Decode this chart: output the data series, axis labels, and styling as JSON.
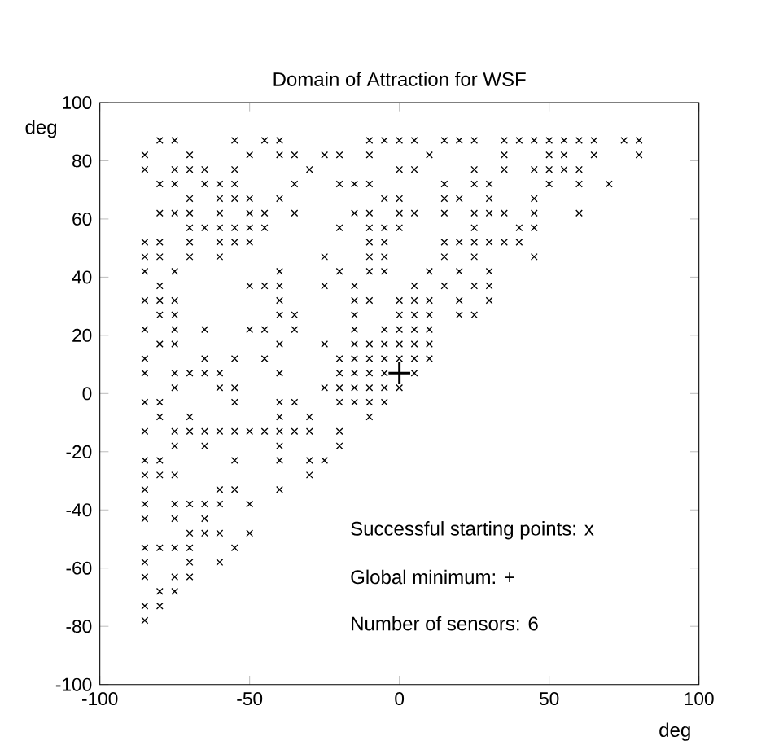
{
  "chart_data": {
    "type": "scatter",
    "title": "Domain of Attraction for WSF",
    "xlabel": "deg",
    "ylabel": "deg",
    "xlim": [
      -100,
      100
    ],
    "ylim": [
      -100,
      100
    ],
    "xticks": [
      -100,
      -50,
      0,
      50,
      100
    ],
    "yticks": [
      -100,
      -80,
      -60,
      -40,
      -20,
      0,
      20,
      40,
      60,
      80,
      100
    ],
    "annotations": [
      "Successful starting points:  x",
      "Global minimum:  +",
      "Number of sensors:  6"
    ],
    "series": [
      {
        "color": "#000000",
        "marker": "cross",
        "x": [
          -80,
          -75,
          -55,
          -45,
          -40,
          -10,
          -5,
          0,
          5,
          15,
          20,
          25,
          35,
          40,
          45,
          50,
          55,
          60,
          65,
          75,
          80,
          -85,
          -70,
          -50,
          -40,
          -35,
          -25,
          -20,
          -10,
          10,
          35,
          50,
          55,
          65,
          80,
          -85,
          -75,
          -70,
          -65,
          -55,
          -30,
          0,
          5,
          25,
          35,
          45,
          50,
          55,
          60,
          -80,
          -75,
          -65,
          -60,
          -55,
          -35,
          -20,
          -15,
          -10,
          15,
          25,
          30,
          50,
          60,
          70,
          -70,
          -60,
          -55,
          -50,
          -40,
          -5,
          0,
          15,
          20,
          30,
          45,
          -80,
          -75,
          -70,
          -60,
          -50,
          -45,
          -35,
          -15,
          -10,
          0,
          5,
          15,
          25,
          30,
          35,
          45,
          60,
          -70,
          -65,
          -60,
          -55,
          -50,
          -45,
          -20,
          -10,
          -5,
          0,
          25,
          40,
          45,
          -85,
          -80,
          -70,
          -60,
          -55,
          -50,
          -10,
          -5,
          15,
          20,
          25,
          30,
          35,
          40,
          -85,
          -80,
          -70,
          -60,
          -25,
          -10,
          -5,
          15,
          25,
          45,
          -85,
          -75,
          -40,
          -20,
          -10,
          -5,
          10,
          20,
          30,
          -80,
          -50,
          -45,
          -40,
          -25,
          -15,
          5,
          15,
          25,
          30,
          -85,
          -80,
          -75,
          -40,
          -15,
          -10,
          0,
          5,
          10,
          20,
          30,
          -80,
          -75,
          -40,
          -35,
          -15,
          0,
          5,
          10,
          20,
          25,
          -85,
          -75,
          -65,
          -50,
          -45,
          -35,
          -15,
          -5,
          0,
          5,
          10,
          -80,
          -75,
          -40,
          -25,
          -15,
          -10,
          -5,
          0,
          5,
          10,
          -85,
          -65,
          -55,
          -45,
          -20,
          -15,
          -10,
          -5,
          0,
          5,
          10,
          -85,
          -75,
          -70,
          -65,
          -60,
          -40,
          -20,
          -15,
          -10,
          -5,
          5,
          -75,
          -60,
          -55,
          -25,
          -20,
          -15,
          -10,
          -5,
          0,
          -85,
          -80,
          -55,
          -40,
          -35,
          -20,
          -15,
          -10,
          -5,
          -80,
          -70,
          -40,
          -30,
          -10,
          -85,
          -75,
          -70,
          -65,
          -60,
          -55,
          -50,
          -45,
          -40,
          -35,
          -30,
          -20,
          -75,
          -65,
          -40,
          -20,
          -85,
          -80,
          -55,
          -40,
          -30,
          -25,
          -85,
          -80,
          -75,
          -30,
          -85,
          -60,
          -55,
          -40,
          -85,
          -75,
          -70,
          -65,
          -60,
          -50,
          -85,
          -75,
          -65,
          -70,
          -65,
          -60,
          -50,
          -85,
          -80,
          -75,
          -70,
          -55,
          -85,
          -70,
          -60,
          -85,
          -75,
          -70,
          -80,
          -75,
          -85,
          -80,
          -85
        ],
        "values": [
          87,
          87,
          87,
          87,
          87,
          87,
          87,
          87,
          87,
          87,
          87,
          87,
          87,
          87,
          87,
          87,
          87,
          87,
          87,
          87,
          87,
          82,
          82,
          82,
          82,
          82,
          82,
          82,
          82,
          82,
          82,
          82,
          82,
          82,
          82,
          77,
          77,
          77,
          77,
          77,
          77,
          77,
          77,
          77,
          77,
          77,
          77,
          77,
          77,
          72,
          72,
          72,
          72,
          72,
          72,
          72,
          72,
          72,
          72,
          72,
          72,
          72,
          72,
          72,
          67,
          67,
          67,
          67,
          67,
          67,
          67,
          67,
          67,
          67,
          67,
          62,
          62,
          62,
          62,
          62,
          62,
          62,
          62,
          62,
          62,
          62,
          62,
          62,
          62,
          62,
          62,
          62,
          57,
          57,
          57,
          57,
          57,
          57,
          57,
          57,
          57,
          57,
          57,
          57,
          57,
          52,
          52,
          52,
          52,
          52,
          52,
          52,
          52,
          52,
          52,
          52,
          52,
          52,
          52,
          47,
          47,
          47,
          47,
          47,
          47,
          47,
          47,
          47,
          47,
          42,
          42,
          42,
          42,
          42,
          42,
          42,
          42,
          42,
          37,
          37,
          37,
          37,
          37,
          37,
          37,
          37,
          37,
          37,
          32,
          32,
          32,
          32,
          32,
          32,
          32,
          32,
          32,
          32,
          32,
          27,
          27,
          27,
          27,
          27,
          27,
          27,
          27,
          27,
          27,
          22,
          22,
          22,
          22,
          22,
          22,
          22,
          22,
          22,
          22,
          22,
          17,
          17,
          17,
          17,
          17,
          17,
          17,
          17,
          17,
          17,
          12,
          12,
          12,
          12,
          12,
          12,
          12,
          12,
          12,
          12,
          12,
          7,
          7,
          7,
          7,
          7,
          7,
          7,
          7,
          7,
          7,
          7,
          2,
          2,
          2,
          2,
          2,
          2,
          2,
          2,
          2,
          -3,
          -3,
          -3,
          -3,
          -3,
          -3,
          -3,
          -3,
          -3,
          -8,
          -8,
          -8,
          -8,
          -8,
          -13,
          -13,
          -13,
          -13,
          -13,
          -13,
          -13,
          -13,
          -13,
          -13,
          -13,
          -13,
          -18,
          -18,
          -18,
          -18,
          -23,
          -23,
          -23,
          -23,
          -23,
          -23,
          -28,
          -28,
          -28,
          -28,
          -33,
          -33,
          -33,
          -33,
          -38,
          -38,
          -38,
          -38,
          -38,
          -38,
          -43,
          -43,
          -43,
          -48,
          -48,
          -48,
          -48,
          -53,
          -53,
          -53,
          -53,
          -53,
          -58,
          -58,
          -58,
          -63,
          -63,
          -63,
          -68,
          -68,
          -73,
          -73,
          -78
        ]
      },
      {
        "color": "#000000",
        "marker": "plus",
        "x": [
          0
        ],
        "values": [
          7
        ]
      }
    ]
  }
}
